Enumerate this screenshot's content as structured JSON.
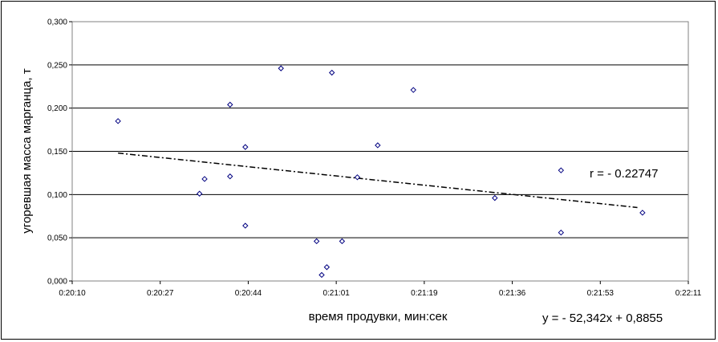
{
  "chart_data": {
    "type": "scatter",
    "title": "",
    "xlabel": "время продувки, мин:сек",
    "ylabel": "угоревшая масса марганца, т",
    "x_tick_labels": [
      "0:20:10",
      "0:20:27",
      "0:20:44",
      "0:21:01",
      "0:21:19",
      "0:21:36",
      "0:21:53",
      "0:22:11"
    ],
    "y_tick_labels": [
      "0,000",
      "0,050",
      "0,100",
      "0,150",
      "0,200",
      "0,250",
      "0,300"
    ],
    "xlim": [
      "0:20:10",
      "0:22:11"
    ],
    "ylim": [
      0,
      0.3
    ],
    "grid": "horizontal",
    "legend": "none",
    "points": [
      {
        "x": "0:20:19",
        "y": 0.185
      },
      {
        "x": "0:20:35",
        "y": 0.101
      },
      {
        "x": "0:20:36",
        "y": 0.118
      },
      {
        "x": "0:20:41",
        "y": 0.204
      },
      {
        "x": "0:20:41",
        "y": 0.121
      },
      {
        "x": "0:20:44",
        "y": 0.155
      },
      {
        "x": "0:20:44",
        "y": 0.064
      },
      {
        "x": "0:20:51",
        "y": 0.246
      },
      {
        "x": "0:20:58",
        "y": 0.046
      },
      {
        "x": "0:20:59",
        "y": 0.007
      },
      {
        "x": "0:21:00",
        "y": 0.016
      },
      {
        "x": "0:21:01",
        "y": 0.241
      },
      {
        "x": "0:21:03",
        "y": 0.046
      },
      {
        "x": "0:21:06",
        "y": 0.12
      },
      {
        "x": "0:21:10",
        "y": 0.157
      },
      {
        "x": "0:21:17",
        "y": 0.221
      },
      {
        "x": "0:21:33",
        "y": 0.096
      },
      {
        "x": "0:21:46",
        "y": 0.128
      },
      {
        "x": "0:21:46",
        "y": 0.056
      },
      {
        "x": "0:22:02",
        "y": 0.079
      }
    ],
    "trendline": {
      "style": "dash-dot",
      "from": {
        "x": "0:20:19",
        "y": 0.148
      },
      "to": {
        "x": "0:22:01",
        "y": 0.085
      }
    },
    "annotations": {
      "correlation": "r = - 0.22747",
      "equation": "y = - 52,342x + 0,8855"
    },
    "colors": {
      "marker": "#000080",
      "grid": "#000000",
      "trendline": "#000000"
    }
  }
}
